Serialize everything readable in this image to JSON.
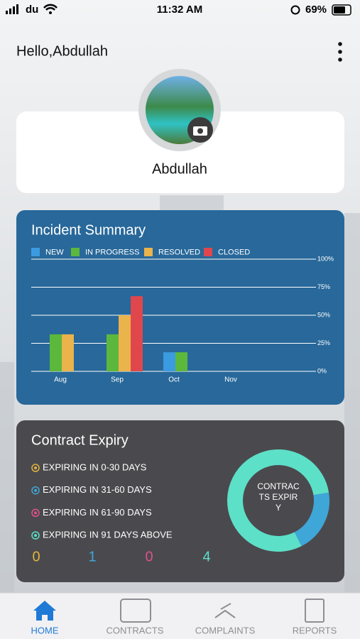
{
  "status_bar": {
    "carrier": "du",
    "time": "11:32 AM",
    "battery": "69%"
  },
  "header": {
    "greeting": "Hello,Abdullah"
  },
  "profile": {
    "name": "Abdullah"
  },
  "incident_chart": {
    "type": "bar",
    "title": "Incident Summary",
    "categories": [
      "Aug",
      "Sep",
      "Oct",
      "Nov"
    ],
    "series": [
      {
        "name": "NEW",
        "color": "#3b9be0",
        "values": [
          0,
          0,
          17,
          0
        ]
      },
      {
        "name": "IN PROGRESS",
        "color": "#5cb83c",
        "values": [
          33,
          33,
          17,
          0
        ]
      },
      {
        "name": "RESOLVED",
        "color": "#eab34c",
        "values": [
          33,
          50,
          0,
          0
        ]
      },
      {
        "name": "CLOSED",
        "color": "#e0474c",
        "values": [
          0,
          67,
          0,
          0
        ]
      }
    ],
    "ylim": [
      0,
      100
    ],
    "yticks": [
      {
        "value": 0,
        "label": "0%"
      },
      {
        "value": 25,
        "label": "25%"
      },
      {
        "value": 50,
        "label": "50%"
      },
      {
        "value": 75,
        "label": "75%"
      },
      {
        "value": 100,
        "label": "100%"
      }
    ],
    "grid": true
  },
  "contract_expiry": {
    "title": "Contract Expiry",
    "center_label": "CONTRACTS EXPIRY",
    "items": [
      {
        "label": "EXPIRING IN 0-30 DAYS",
        "color": "#e2b33c",
        "count": 0
      },
      {
        "label": "EXPIRING IN 31-60 DAYS",
        "color": "#3fa6d8",
        "count": 1
      },
      {
        "label": "EXPIRING IN 61-90 DAYS",
        "color": "#e0508a",
        "count": 0
      },
      {
        "label": "EXPIRING IN 91 DAYS ABOVE",
        "color": "#5de0c8",
        "count": 4
      }
    ]
  },
  "tabs": [
    {
      "label": "HOME",
      "active": true
    },
    {
      "label": "CONTRACTS",
      "active": false
    },
    {
      "label": "COMPLAINTS",
      "active": false
    },
    {
      "label": "REPORTS",
      "active": false
    }
  ]
}
